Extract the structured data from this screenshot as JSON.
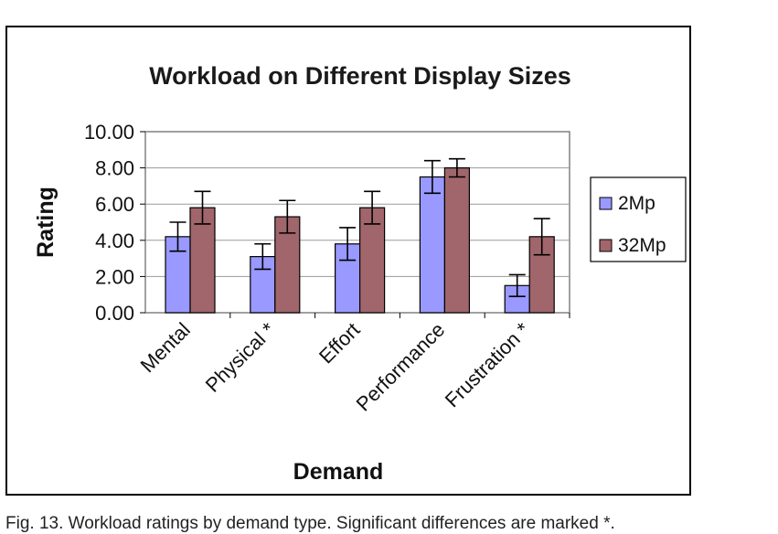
{
  "chart_data": {
    "type": "bar",
    "title": "Workload on Different Display Sizes",
    "xlabel": "Demand",
    "ylabel": "Rating",
    "ylim": [
      0,
      10
    ],
    "yticks": [
      "0.00",
      "2.00",
      "4.00",
      "6.00",
      "8.00",
      "10.00"
    ],
    "categories": [
      "Mental",
      "Physical *",
      "Effort",
      "Performance",
      "Frustration *"
    ],
    "series": [
      {
        "name": "2Mp",
        "color": "#9999ff",
        "values": [
          4.2,
          3.1,
          3.8,
          7.5,
          1.5
        ],
        "error": [
          0.8,
          0.7,
          0.9,
          0.9,
          0.6
        ]
      },
      {
        "name": "32Mp",
        "color": "#a0666b",
        "values": [
          5.8,
          5.3,
          5.8,
          8.0,
          4.2
        ],
        "error": [
          0.9,
          0.9,
          0.9,
          0.5,
          1.0
        ]
      }
    ],
    "grid": true,
    "legend": "right"
  },
  "caption": "Fig. 13. Workload ratings by demand type. Significant differences are marked *."
}
